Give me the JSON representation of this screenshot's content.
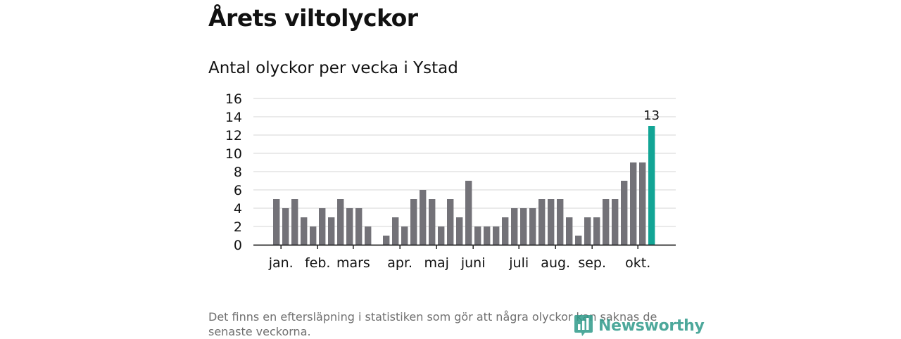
{
  "title": "Årets viltolyckor",
  "subtitle": "Antal olyckor per vecka i Ystad",
  "footnote": "Det finns en eftersläpning i statistiken som gör att några olyckor kan saknas de senaste veckorna.",
  "logo": {
    "text": "Newsworthy",
    "icon": "newsworthy-logo-icon"
  },
  "colors": {
    "bar": "#737278",
    "highlight": "#12a595",
    "grid": "#dddddd",
    "axis": "#222222",
    "text": "#111111"
  },
  "chart_data": {
    "type": "bar",
    "title": "Antal olyckor per vecka i Ystad",
    "xlabel": "",
    "ylabel": "",
    "ylim": [
      0,
      16
    ],
    "yticks": [
      0,
      2,
      4,
      6,
      8,
      10,
      12,
      14,
      16
    ],
    "grid": true,
    "weeks": [
      1,
      2,
      3,
      4,
      5,
      6,
      7,
      8,
      9,
      10,
      11,
      12,
      13,
      14,
      15,
      16,
      17,
      18,
      19,
      20,
      21,
      22,
      23,
      24,
      25,
      26,
      27,
      28,
      29,
      30,
      31,
      32,
      33,
      34,
      35,
      36,
      37,
      38,
      39,
      40,
      41,
      42
    ],
    "values": [
      5,
      4,
      5,
      3,
      2,
      4,
      3,
      5,
      4,
      4,
      2,
      0,
      1,
      3,
      2,
      5,
      6,
      5,
      2,
      5,
      3,
      7,
      2,
      2,
      2,
      3,
      4,
      4,
      4,
      5,
      5,
      5,
      3,
      1,
      3,
      3,
      5,
      5,
      7,
      9,
      9,
      13
    ],
    "month_labels": [
      {
        "label": "jan.",
        "week": 1.5
      },
      {
        "label": "feb.",
        "week": 5.5
      },
      {
        "label": "mars",
        "week": 9.4
      },
      {
        "label": "apr.",
        "week": 14.5
      },
      {
        "label": "maj",
        "week": 18.5
      },
      {
        "label": "juni",
        "week": 22.5
      },
      {
        "label": "juli",
        "week": 27.5
      },
      {
        "label": "aug.",
        "week": 31.5
      },
      {
        "label": "sep.",
        "week": 35.5
      },
      {
        "label": "okt.",
        "week": 40.5
      }
    ],
    "highlight": {
      "week": 42,
      "value": 13,
      "label": "13"
    }
  }
}
